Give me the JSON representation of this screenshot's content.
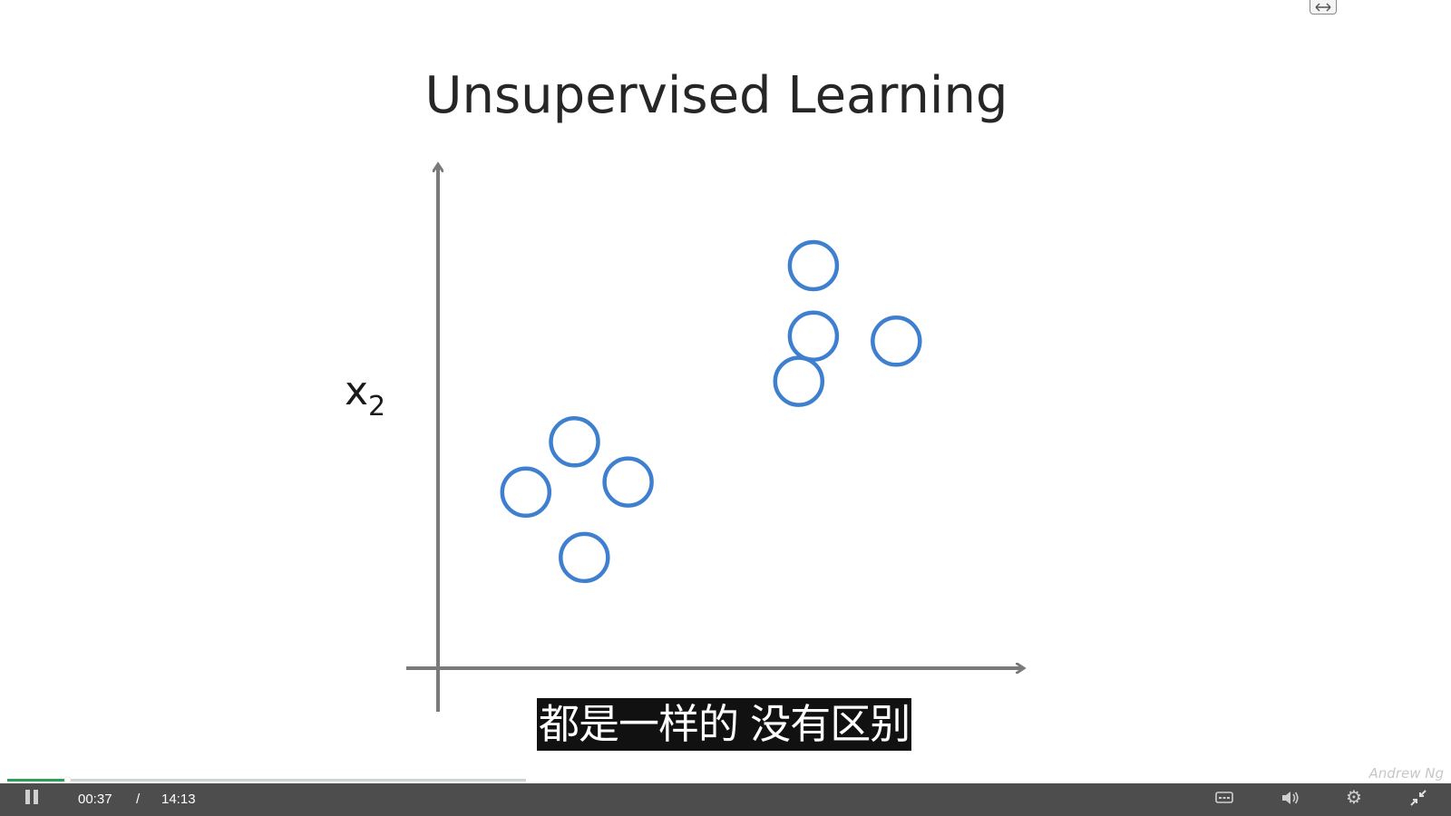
{
  "slide": {
    "title": "Unsupervised Learning",
    "y_axis_label": "x",
    "y_axis_sub": "2",
    "point_color": "#3f7fd0"
  },
  "chart_data": {
    "type": "scatter",
    "title": "Unsupervised Learning",
    "ylabel": "x2",
    "xlabel": "",
    "points": [
      {
        "x": 1.8,
        "y": 3.5
      },
      {
        "x": 2.8,
        "y": 4.5
      },
      {
        "x": 3.9,
        "y": 3.7
      },
      {
        "x": 3.0,
        "y": 2.2
      },
      {
        "x": 7.4,
        "y": 5.7
      },
      {
        "x": 7.7,
        "y": 6.6
      },
      {
        "x": 7.7,
        "y": 8.0
      },
      {
        "x": 9.4,
        "y": 6.5
      }
    ],
    "xlim": [
      0,
      12
    ],
    "ylim": [
      0,
      10
    ],
    "grid": false
  },
  "subtitle": {
    "text": "都是一样的 没有区别"
  },
  "player": {
    "current_time": "00:37",
    "separator": "/",
    "total_time": "14:13",
    "progress_fraction": 0.115,
    "progress_color": "#2e9f57"
  },
  "watermark": {
    "text": "Andrew Ng"
  }
}
